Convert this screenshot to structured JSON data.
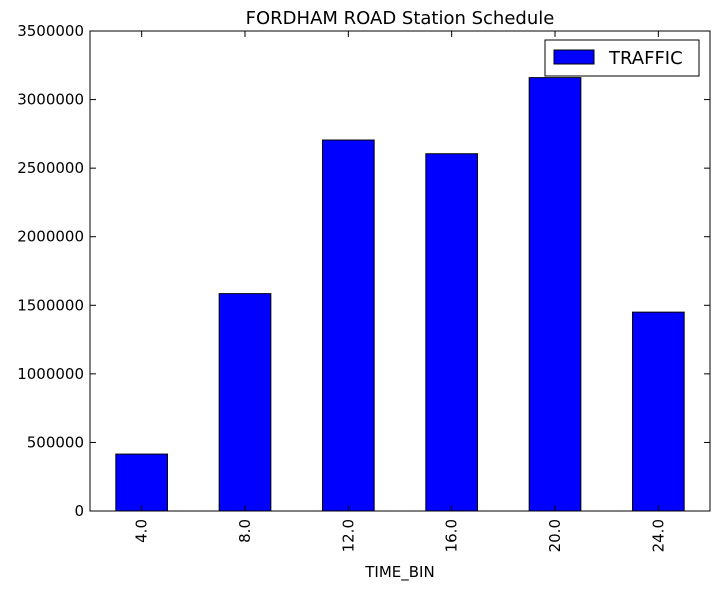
{
  "chart_data": {
    "type": "bar",
    "title": "FORDHAM ROAD Station Schedule",
    "xlabel": "TIME_BIN",
    "ylabel": "",
    "categories": [
      "4.0",
      "8.0",
      "12.0",
      "16.0",
      "20.0",
      "24.0"
    ],
    "series": [
      {
        "name": "TRAFFIC",
        "color": "#0000ff",
        "values": [
          415000,
          1585000,
          2705000,
          2605000,
          3160000,
          1450000
        ]
      }
    ],
    "ylim": [
      0,
      3500000
    ],
    "yticks": [
      0,
      500000,
      1000000,
      1500000,
      2000000,
      2500000,
      3000000,
      3500000
    ],
    "ytick_labels": [
      "0",
      "500000",
      "1000000",
      "1500000",
      "2000000",
      "2500000",
      "3000000",
      "3500000"
    ],
    "grid": false,
    "legend_position": "top-right",
    "xtick_rotation": "vertical"
  }
}
